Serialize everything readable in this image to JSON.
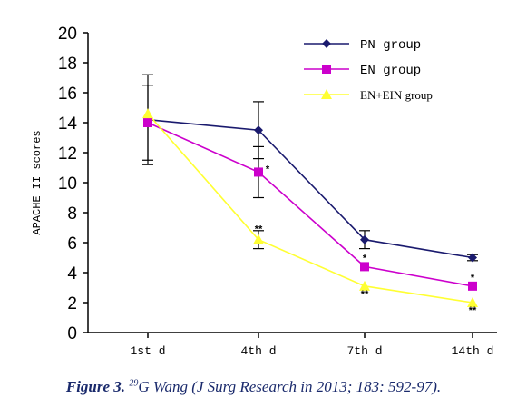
{
  "chart_data": {
    "type": "line",
    "categories": [
      "1st d",
      "4th d",
      "7th d",
      "14th d"
    ],
    "ylabel": "APACHE II scores",
    "ylim": [
      0,
      20
    ],
    "yticks": [
      0,
      2,
      4,
      6,
      8,
      10,
      12,
      14,
      16,
      18,
      20
    ],
    "grid": false,
    "legend_position": "top-right",
    "series": [
      {
        "name": "PN group",
        "color": "#1a1a6e",
        "marker": "diamond",
        "values": [
          14.2,
          13.5,
          6.2,
          5.0
        ],
        "error": [
          3.0,
          1.9,
          0.6,
          0.2
        ],
        "significance": [
          "",
          "",
          "",
          ""
        ]
      },
      {
        "name": "EN group",
        "color": "#cc00cc",
        "marker": "square",
        "values": [
          14.0,
          10.7,
          4.4,
          3.1
        ],
        "error": [
          2.5,
          1.7,
          0.0,
          0.0
        ],
        "significance": [
          "",
          "*",
          "*",
          "*"
        ]
      },
      {
        "name": "EN+EIN group",
        "color": "#ffff33",
        "marker": "triangle",
        "values": [
          14.6,
          6.2,
          3.1,
          2.0
        ],
        "error": [
          0.0,
          0.6,
          0.0,
          0.0
        ],
        "significance": [
          "",
          "**",
          "**",
          "**"
        ]
      }
    ]
  },
  "caption": {
    "label": "Figure 3.",
    "ref": "29",
    "text": "G Wang (J Surg Research in 2013; 183: 592-97)."
  }
}
